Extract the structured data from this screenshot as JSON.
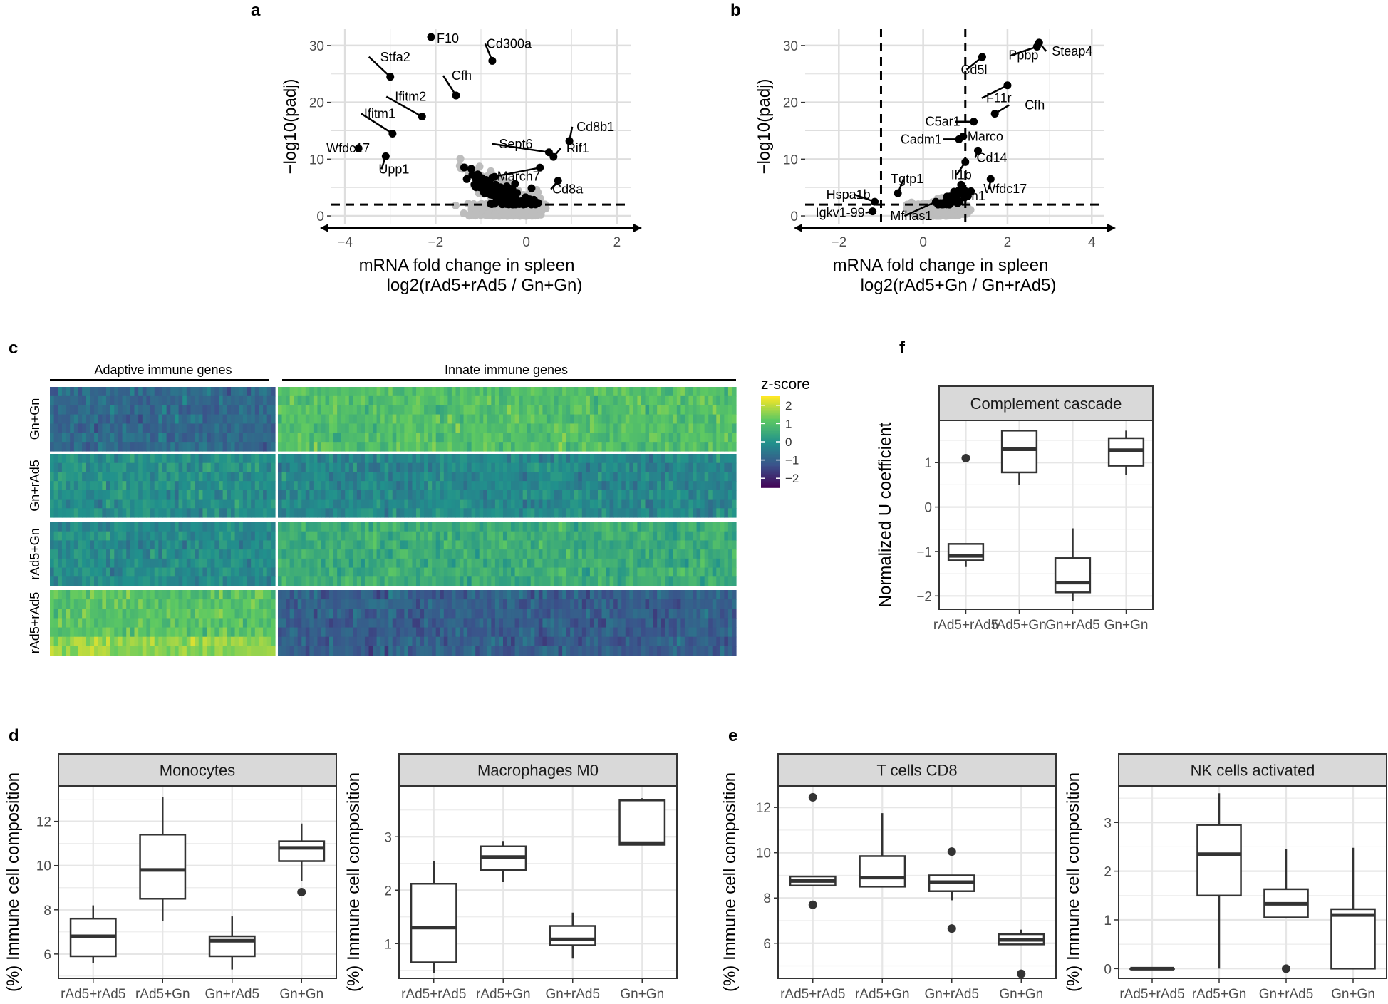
{
  "panel_labels": [
    "a",
    "b",
    "c",
    "d",
    "e",
    "f"
  ],
  "colors": {
    "grid": "#dedede",
    "nonsig_points": "#bdbdbd",
    "sig_points": "#000000",
    "strip": "#d9d9d9",
    "viridis": [
      "#440154",
      "#3b528b",
      "#21918c",
      "#5ec962",
      "#fde725"
    ]
  },
  "chart_data": [
    {
      "id": "a",
      "type": "scatter",
      "title": "",
      "xlabel": "mRNA fold change in spleen",
      "xlabel2": "log2(rAd5+rAd5 / Gn+Gn)",
      "ylabel": "-log10(padj)",
      "xlim": [
        -4.3,
        2.3
      ],
      "ylim": [
        -1.5,
        33
      ],
      "xticks": [
        -4,
        -2,
        0,
        2
      ],
      "yticks": [
        0,
        10,
        20,
        30
      ],
      "hline": 2,
      "vlines": [],
      "labeled_genes": [
        {
          "gene": "F10",
          "x": -2.1,
          "y": 31.5
        },
        {
          "gene": "Cd300a",
          "x": -0.75,
          "y": 27.3
        },
        {
          "gene": "Stfa2",
          "x": -3.0,
          "y": 24.5
        },
        {
          "gene": "Cfh",
          "x": -1.55,
          "y": 21.2
        },
        {
          "gene": "Ifitm2",
          "x": -2.3,
          "y": 17.5
        },
        {
          "gene": "Ifitm1",
          "x": -2.95,
          "y": 14.5
        },
        {
          "gene": "Cd8b1",
          "x": 0.95,
          "y": 13.2
        },
        {
          "gene": "Wfdc17",
          "x": -3.7,
          "y": 11.9
        },
        {
          "gene": "Sept6",
          "x": 0.5,
          "y": 11.2
        },
        {
          "gene": "Rif1",
          "x": 0.6,
          "y": 10.4
        },
        {
          "gene": "Upp1",
          "x": -3.1,
          "y": 10.5
        },
        {
          "gene": "March7",
          "x": 0.3,
          "y": 8.5
        },
        {
          "gene": "Cd8a",
          "x": 0.7,
          "y": 6.2
        }
      ]
    },
    {
      "id": "b",
      "type": "scatter",
      "title": "",
      "xlabel": "mRNA fold change in spleen",
      "xlabel2": "log2(rAd5+Gn / Gn+rAd5)",
      "ylabel": "-log10(padj)",
      "xlim": [
        -2.8,
        4.3
      ],
      "ylim": [
        -1.5,
        33
      ],
      "xticks": [
        -2,
        0,
        2,
        4
      ],
      "yticks": [
        0,
        10,
        20,
        30
      ],
      "hline": 2,
      "vlines": [
        -1,
        1
      ],
      "labeled_genes": [
        {
          "gene": "Steap4",
          "x": 2.75,
          "y": 30.5
        },
        {
          "gene": "Ppbp",
          "x": 2.7,
          "y": 29.8
        },
        {
          "gene": "Cd5l",
          "x": 1.4,
          "y": 28.0
        },
        {
          "gene": "F11r",
          "x": 2.0,
          "y": 23.0
        },
        {
          "gene": "Cfh",
          "x": 1.7,
          "y": 18.0
        },
        {
          "gene": "C5ar1",
          "x": 1.2,
          "y": 16.6
        },
        {
          "gene": "Marco",
          "x": 0.95,
          "y": 14.0
        },
        {
          "gene": "Cadm1",
          "x": 0.85,
          "y": 13.5
        },
        {
          "gene": "Cd14",
          "x": 1.3,
          "y": 11.5
        },
        {
          "gene": "Il1b",
          "x": 1.0,
          "y": 9.5
        },
        {
          "gene": "Tgtp1",
          "x": -0.6,
          "y": 4.0
        },
        {
          "gene": "Wfdc17",
          "x": 1.6,
          "y": 6.5
        },
        {
          "gene": "Ifitm1",
          "x": 0.9,
          "y": 5.5
        },
        {
          "gene": "Hspa1b",
          "x": -1.15,
          "y": 2.5
        },
        {
          "gene": "Mfhas1",
          "x": 0.3,
          "y": 2.5
        },
        {
          "gene": "Igkv1-99",
          "x": -1.2,
          "y": 0.8
        }
      ]
    },
    {
      "id": "c",
      "type": "heatmap",
      "column_groups": [
        "Adaptive immune genes",
        "Innate immune genes"
      ],
      "row_groups": [
        "Gn+Gn",
        "Gn+rAd5",
        "rAd5+Gn",
        "rAd5+rAd5"
      ],
      "legend_title": "z-score",
      "legend_ticks": [
        2,
        1,
        0,
        -1,
        -2
      ],
      "zlim": [
        -2.5,
        2.5
      ]
    },
    {
      "id": "d1",
      "type": "boxplot",
      "strip": "Monocytes",
      "ylabel": "(%) Immune cell composition",
      "categories": [
        "rAd5+rAd5",
        "rAd5+Gn",
        "Gn+rAd5",
        "Gn+Gn"
      ],
      "ylim": [
        4.9,
        13.6
      ],
      "yticks": [
        6,
        8,
        10,
        12
      ],
      "boxes": [
        {
          "lower_whisker": 5.6,
          "q1": 5.9,
          "median": 6.8,
          "q3": 7.6,
          "upper_whisker": 8.2,
          "outliers": []
        },
        {
          "lower_whisker": 7.5,
          "q1": 8.5,
          "median": 9.8,
          "q3": 11.4,
          "upper_whisker": 13.1,
          "outliers": []
        },
        {
          "lower_whisker": 5.3,
          "q1": 5.9,
          "median": 6.6,
          "q3": 6.8,
          "upper_whisker": 7.7,
          "outliers": []
        },
        {
          "lower_whisker": 9.3,
          "q1": 10.2,
          "median": 10.8,
          "q3": 11.1,
          "upper_whisker": 11.9,
          "outliers": [
            8.8
          ]
        }
      ]
    },
    {
      "id": "d2",
      "type": "boxplot",
      "strip": "Macrophages M0",
      "ylabel": "(%) Immune cell composition",
      "categories": [
        "rAd5+rAd5",
        "rAd5+Gn",
        "Gn+rAd5",
        "Gn+Gn"
      ],
      "ylim": [
        0.35,
        3.95
      ],
      "yticks": [
        1,
        2,
        3
      ],
      "boxes": [
        {
          "lower_whisker": 0.45,
          "q1": 0.65,
          "median": 1.3,
          "q3": 2.12,
          "upper_whisker": 2.55,
          "outliers": []
        },
        {
          "lower_whisker": 2.15,
          "q1": 2.38,
          "median": 2.62,
          "q3": 2.82,
          "upper_whisker": 2.92,
          "outliers": []
        },
        {
          "lower_whisker": 0.72,
          "q1": 0.97,
          "median": 1.08,
          "q3": 1.33,
          "upper_whisker": 1.58,
          "outliers": []
        },
        {
          "lower_whisker": 2.85,
          "q1": 2.85,
          "median": 2.88,
          "q3": 3.68,
          "upper_whisker": 3.72,
          "outliers": []
        }
      ]
    },
    {
      "id": "e1",
      "type": "boxplot",
      "strip": "T cells CD8",
      "ylabel": "(%) Immune cell composition",
      "categories": [
        "rAd5+rAd5",
        "rAd5+Gn",
        "Gn+rAd5",
        "Gn+Gn"
      ],
      "ylim": [
        4.45,
        12.95
      ],
      "yticks": [
        6,
        8,
        10,
        12
      ],
      "boxes": [
        {
          "lower_whisker": 8.55,
          "q1": 8.55,
          "median": 8.75,
          "q3": 8.95,
          "upper_whisker": 8.95,
          "outliers": [
            12.45,
            7.7
          ]
        },
        {
          "lower_whisker": 8.5,
          "q1": 8.5,
          "median": 8.9,
          "q3": 9.85,
          "upper_whisker": 11.75,
          "outliers": []
        },
        {
          "lower_whisker": 7.9,
          "q1": 8.3,
          "median": 8.7,
          "q3": 9.0,
          "upper_whisker": 9.0,
          "outliers": [
            10.05,
            6.65
          ]
        },
        {
          "lower_whisker": 5.95,
          "q1": 5.95,
          "median": 6.15,
          "q3": 6.4,
          "upper_whisker": 6.6,
          "outliers": [
            4.65
          ]
        }
      ]
    },
    {
      "id": "e2",
      "type": "boxplot",
      "strip": "NK cells activated",
      "ylabel": "(%) Immune cell composition",
      "categories": [
        "rAd5+rAd5",
        "rAd5+Gn",
        "Gn+rAd5",
        "Gn+Gn"
      ],
      "ylim": [
        -0.2,
        3.75
      ],
      "yticks": [
        0,
        1,
        2,
        3
      ],
      "boxes": [
        {
          "lower_whisker": 0.0,
          "q1": 0.0,
          "median": 0.0,
          "q3": 0.0,
          "upper_whisker": 0.0,
          "outliers": []
        },
        {
          "lower_whisker": 0.0,
          "q1": 1.5,
          "median": 2.35,
          "q3": 2.95,
          "upper_whisker": 3.6,
          "outliers": []
        },
        {
          "lower_whisker": 1.05,
          "q1": 1.05,
          "median": 1.33,
          "q3": 1.63,
          "upper_whisker": 2.45,
          "outliers": [
            0.0
          ]
        },
        {
          "lower_whisker": 0.0,
          "q1": 0.0,
          "median": 1.1,
          "q3": 1.22,
          "upper_whisker": 2.48,
          "outliers": []
        }
      ]
    },
    {
      "id": "f",
      "type": "boxplot",
      "strip": "Complement cascade",
      "ylabel": "Normalized U coefficient",
      "categories": [
        "rAd5+rAd5",
        "rAd5+Gn",
        "Gn+rAd5",
        "Gn+Gn"
      ],
      "ylim": [
        -2.3,
        1.95
      ],
      "yticks": [
        1,
        0,
        -1,
        -2
      ],
      "boxes": [
        {
          "lower_whisker": -1.35,
          "q1": -1.2,
          "median": -1.1,
          "q3": -0.83,
          "upper_whisker": -0.83,
          "outliers": [
            1.1
          ]
        },
        {
          "lower_whisker": 0.5,
          "q1": 0.78,
          "median": 1.3,
          "q3": 1.72,
          "upper_whisker": 1.72,
          "outliers": []
        },
        {
          "lower_whisker": -2.12,
          "q1": -1.92,
          "median": -1.7,
          "q3": -1.15,
          "upper_whisker": -0.48,
          "outliers": []
        },
        {
          "lower_whisker": 0.72,
          "q1": 0.93,
          "median": 1.28,
          "q3": 1.55,
          "upper_whisker": 1.72,
          "outliers": []
        }
      ]
    }
  ]
}
